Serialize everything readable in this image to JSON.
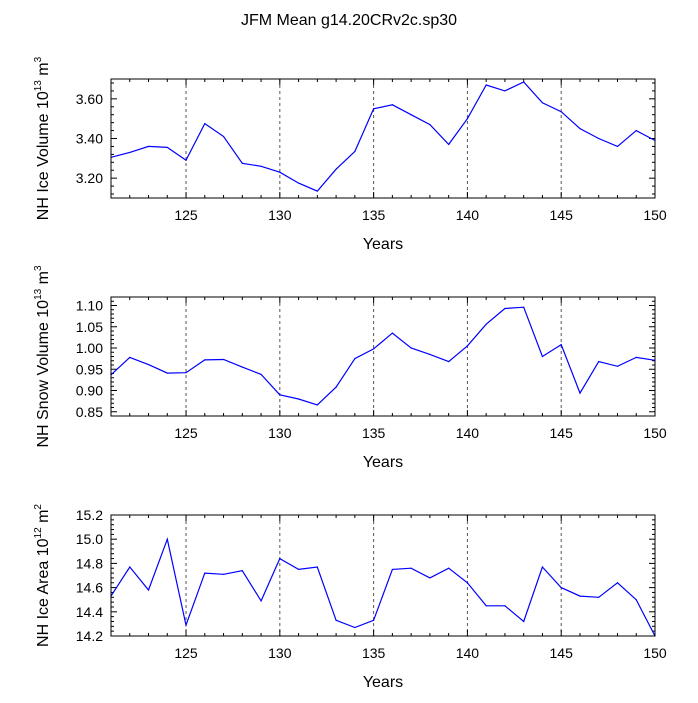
{
  "title": "JFM Mean g14.20CRv2c.sp30",
  "colors": {
    "line": "#0000ff",
    "axis": "#000000",
    "grid": "#555555"
  },
  "chart_data": [
    {
      "type": "line",
      "ylabel": "NH Ice Volume 10¹³ m³",
      "ylabel_main": "NH Ice Volume 10",
      "ylabel_exp1": "13",
      "ylabel_unit": " m",
      "ylabel_exp2": "3",
      "xlabel": "Years",
      "xlim": [
        121,
        150
      ],
      "ylim": [
        3.1,
        3.7
      ],
      "xticks": [
        125,
        130,
        135,
        140,
        145,
        150
      ],
      "yticks": [
        3.2,
        3.4,
        3.6
      ],
      "ytick_labels": [
        "3.20",
        "3.40",
        "3.60"
      ],
      "grid": "vertical dashed at major x ticks",
      "x": [
        121,
        122,
        123,
        124,
        125,
        126,
        127,
        128,
        129,
        130,
        131,
        132,
        133,
        134,
        135,
        136,
        137,
        138,
        139,
        140,
        141,
        142,
        143,
        144,
        145,
        146,
        147,
        148,
        149,
        150
      ],
      "y": [
        3.305,
        3.33,
        3.36,
        3.355,
        3.29,
        3.475,
        3.41,
        3.275,
        3.26,
        3.23,
        3.175,
        3.135,
        3.245,
        3.335,
        3.55,
        3.57,
        3.52,
        3.47,
        3.37,
        3.5,
        3.67,
        3.64,
        3.685,
        3.58,
        3.535,
        3.45,
        3.4,
        3.36,
        3.44,
        3.39
      ]
    },
    {
      "type": "line",
      "ylabel": "NH Snow Volume 10¹³ m³",
      "ylabel_main": "NH Snow Volume 10",
      "ylabel_exp1": "13",
      "ylabel_unit": " m",
      "ylabel_exp2": "3",
      "xlabel": "Years",
      "xlim": [
        121,
        150
      ],
      "ylim": [
        0.84,
        1.12
      ],
      "xticks": [
        125,
        130,
        135,
        140,
        145,
        150
      ],
      "yticks": [
        0.85,
        0.9,
        0.95,
        1.0,
        1.05,
        1.1
      ],
      "ytick_labels": [
        "0.85",
        "0.90",
        "0.95",
        "1.00",
        "1.05",
        "1.10"
      ],
      "grid": "vertical dashed at major x ticks",
      "x": [
        121,
        122,
        123,
        124,
        125,
        126,
        127,
        128,
        129,
        130,
        131,
        132,
        133,
        134,
        135,
        136,
        137,
        138,
        139,
        140,
        141,
        142,
        143,
        144,
        145,
        146,
        147,
        148,
        149,
        150
      ],
      "y": [
        0.937,
        0.978,
        0.961,
        0.941,
        0.942,
        0.972,
        0.973,
        0.955,
        0.938,
        0.89,
        0.88,
        0.866,
        0.908,
        0.975,
        0.998,
        1.035,
        1.0,
        0.985,
        0.968,
        1.005,
        1.056,
        1.093,
        1.096,
        0.98,
        1.008,
        0.894,
        0.968,
        0.957,
        0.978,
        0.971
      ]
    },
    {
      "type": "line",
      "ylabel": "NH Ice Area 10¹² m²",
      "ylabel_main": "NH Ice Area 10",
      "ylabel_exp1": "12",
      "ylabel_unit": " m",
      "ylabel_exp2": "2",
      "xlabel": "Years",
      "xlim": [
        121,
        150
      ],
      "ylim": [
        14.2,
        15.2
      ],
      "xticks": [
        125,
        130,
        135,
        140,
        145,
        150
      ],
      "yticks": [
        14.2,
        14.4,
        14.6,
        14.8,
        15.0,
        15.2
      ],
      "ytick_labels": [
        "14.2",
        "14.4",
        "14.6",
        "14.8",
        "15.0",
        "15.2"
      ],
      "grid": "vertical dashed at major x ticks",
      "x": [
        121,
        122,
        123,
        124,
        125,
        126,
        127,
        128,
        129,
        130,
        131,
        132,
        133,
        134,
        135,
        136,
        137,
        138,
        139,
        140,
        141,
        142,
        143,
        144,
        145,
        146,
        147,
        148,
        149,
        150
      ],
      "y": [
        14.53,
        14.77,
        14.58,
        15.0,
        14.29,
        14.72,
        14.71,
        14.74,
        14.49,
        14.84,
        14.75,
        14.77,
        14.33,
        14.27,
        14.33,
        14.75,
        14.76,
        14.68,
        14.76,
        14.64,
        14.45,
        14.45,
        14.32,
        14.77,
        14.6,
        14.53,
        14.52,
        14.64,
        14.5,
        14.2
      ]
    }
  ]
}
